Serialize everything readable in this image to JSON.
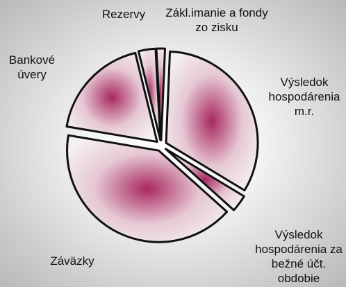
{
  "chart_data": {
    "type": "pie",
    "categories": [
      "Zákl.imanie a fondy zo zisku",
      "Výsledok hospodárenia m.r.",
      "Výsledok hospodárenia za bežné účt. obdobie",
      "Záväzky",
      "Bankové úvery",
      "Rezervy"
    ],
    "values": [
      1.5,
      33,
      3,
      41,
      18.5,
      3
    ],
    "color": "#a8285f"
  }
}
